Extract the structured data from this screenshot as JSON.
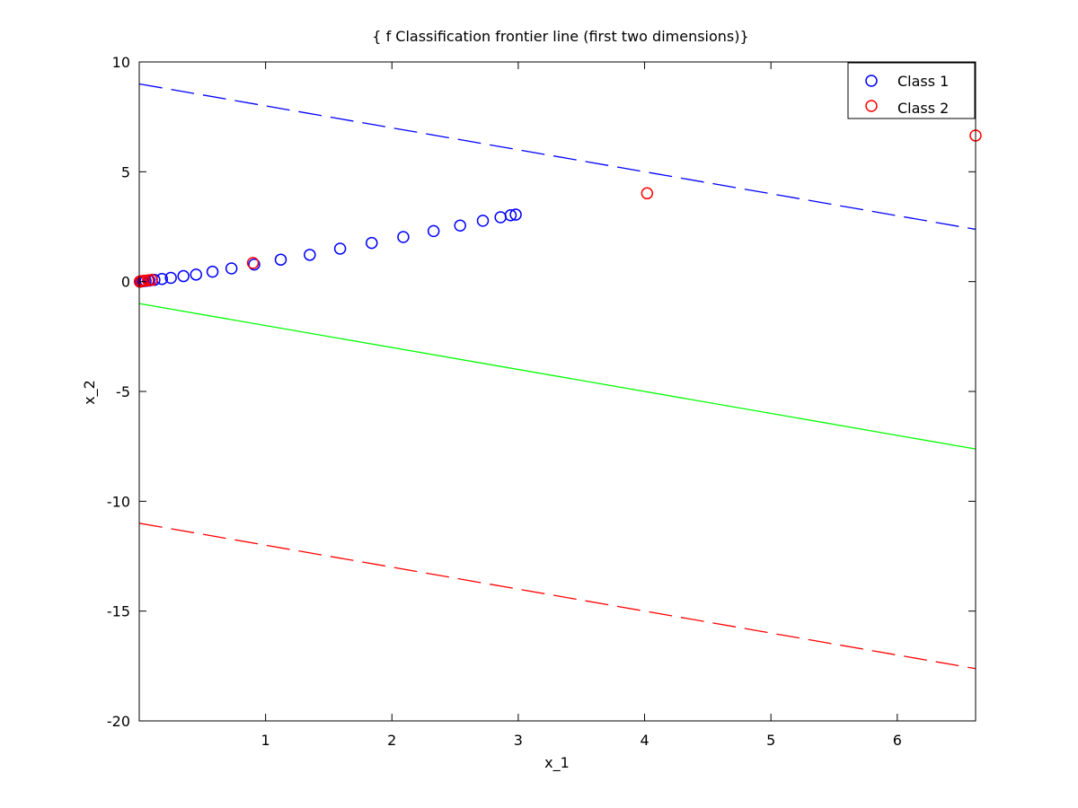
{
  "chart_data": {
    "type": "scatter",
    "title": "{ f Classification frontier line (first two dimensions)}",
    "xlabel": "x_1",
    "ylabel": "x_2",
    "xlim": [
      0,
      6.62
    ],
    "ylim": [
      -20,
      10
    ],
    "xticks": [
      1,
      2,
      3,
      4,
      5,
      6
    ],
    "yticks": [
      10,
      5,
      0,
      -5,
      -10,
      -15,
      -20
    ],
    "legend_placement": "top-right",
    "grid": false,
    "series": [
      {
        "name": "Class 1",
        "color": "#0000ff",
        "marker": "circle",
        "points": [
          [
            0.005,
            0.0
          ],
          [
            0.015,
            0.01
          ],
          [
            0.03,
            0.02
          ],
          [
            0.05,
            0.03
          ],
          [
            0.08,
            0.05
          ],
          [
            0.12,
            0.08
          ],
          [
            0.18,
            0.12
          ],
          [
            0.25,
            0.17
          ],
          [
            0.35,
            0.25
          ],
          [
            0.45,
            0.32
          ],
          [
            0.58,
            0.45
          ],
          [
            0.73,
            0.6
          ],
          [
            0.91,
            0.78
          ],
          [
            1.12,
            1.0
          ],
          [
            1.35,
            1.22
          ],
          [
            1.59,
            1.5
          ],
          [
            1.84,
            1.76
          ],
          [
            2.09,
            2.03
          ],
          [
            2.33,
            2.3
          ],
          [
            2.54,
            2.55
          ],
          [
            2.72,
            2.77
          ],
          [
            2.86,
            2.93
          ],
          [
            2.94,
            3.02
          ],
          [
            2.98,
            3.05
          ]
        ]
      },
      {
        "name": "Class 2",
        "color": "#ff0000",
        "marker": "circle",
        "points": [
          [
            0.005,
            0.0
          ],
          [
            0.02,
            0.02
          ],
          [
            0.04,
            0.04
          ],
          [
            0.07,
            0.06
          ],
          [
            0.1,
            0.08
          ],
          [
            0.9,
            0.85
          ],
          [
            4.02,
            4.02
          ],
          [
            6.62,
            6.65
          ]
        ]
      }
    ],
    "lines": [
      {
        "color": "#0000ff",
        "style": "dashed",
        "x": [
          0,
          6.62
        ],
        "y": [
          9,
          2.38
        ]
      },
      {
        "color": "#00ff00",
        "style": "solid",
        "x": [
          0,
          6.62
        ],
        "y": [
          -1,
          -7.62
        ]
      },
      {
        "color": "#ff0000",
        "style": "dashed",
        "x": [
          0,
          6.62
        ],
        "y": [
          -11,
          -17.62
        ]
      }
    ]
  }
}
